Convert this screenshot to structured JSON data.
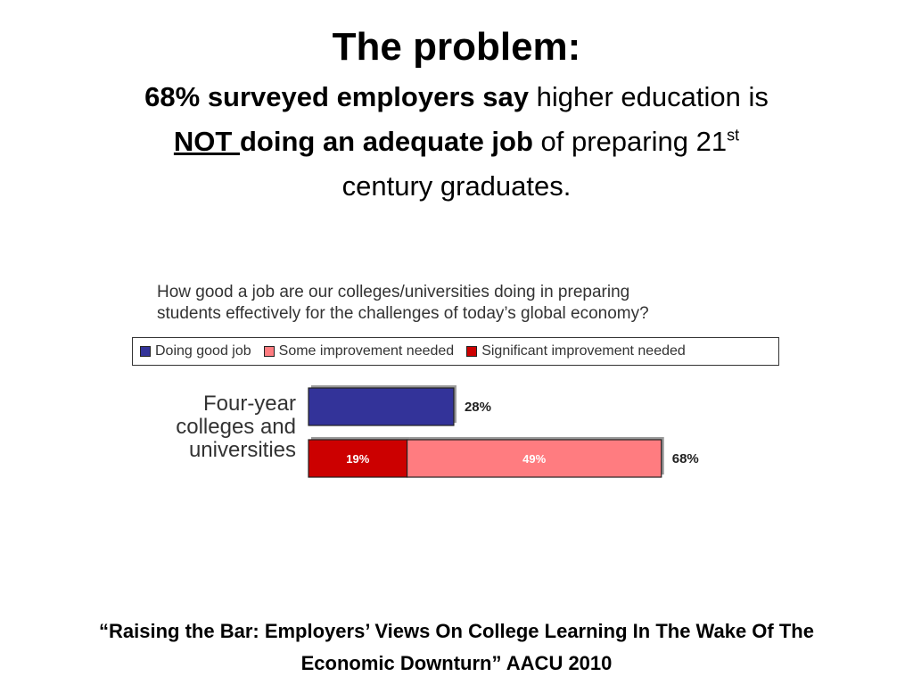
{
  "slide": {
    "title": "The problem:",
    "body_bold_1": "68% surveyed employers say",
    "body_plain_1": " higher education is",
    "body_underline": "NOT ",
    "body_bold_2": "doing an adequate job",
    "body_plain_2": " of preparing 21",
    "body_superscript": "st",
    "body_plain_3": "century graduates.",
    "footer_line_1": "“Raising the Bar: Employers’ Views On College Learning In The Wake Of The",
    "footer_line_2": "Economic Downturn” AACU 2010"
  },
  "chart_data": {
    "type": "bar",
    "orientation": "horizontal",
    "title": "How good a job are our colleges/universities doing in preparing students effectively for the challenges of today’s global economy?",
    "title_line_1": "How good a job are our colleges/universities doing in preparing",
    "title_line_2": "students effectively for the challenges of today’s global economy?",
    "category_lines": [
      "Four-year",
      "colleges and",
      "universities"
    ],
    "legend_position": "top",
    "series": [
      {
        "name": "Doing good job",
        "color": "#333399",
        "value": 28,
        "bar": 1
      },
      {
        "name": "Some improvement needed",
        "color": "#ff7c80",
        "value": 49,
        "bar": 2
      },
      {
        "name": "Significant improvement needed",
        "color": "#cc0000",
        "value": 19,
        "bar": 2
      }
    ],
    "bars": [
      {
        "segments": [
          {
            "series": "Doing good job",
            "value": 28,
            "label": ""
          }
        ],
        "total_label": "28%"
      },
      {
        "segments": [
          {
            "series": "Significant improvement needed",
            "value": 19,
            "label": "19%"
          },
          {
            "series": "Some improvement needed",
            "value": 49,
            "label": "49%"
          }
        ],
        "total_label": "68%"
      }
    ]
  }
}
